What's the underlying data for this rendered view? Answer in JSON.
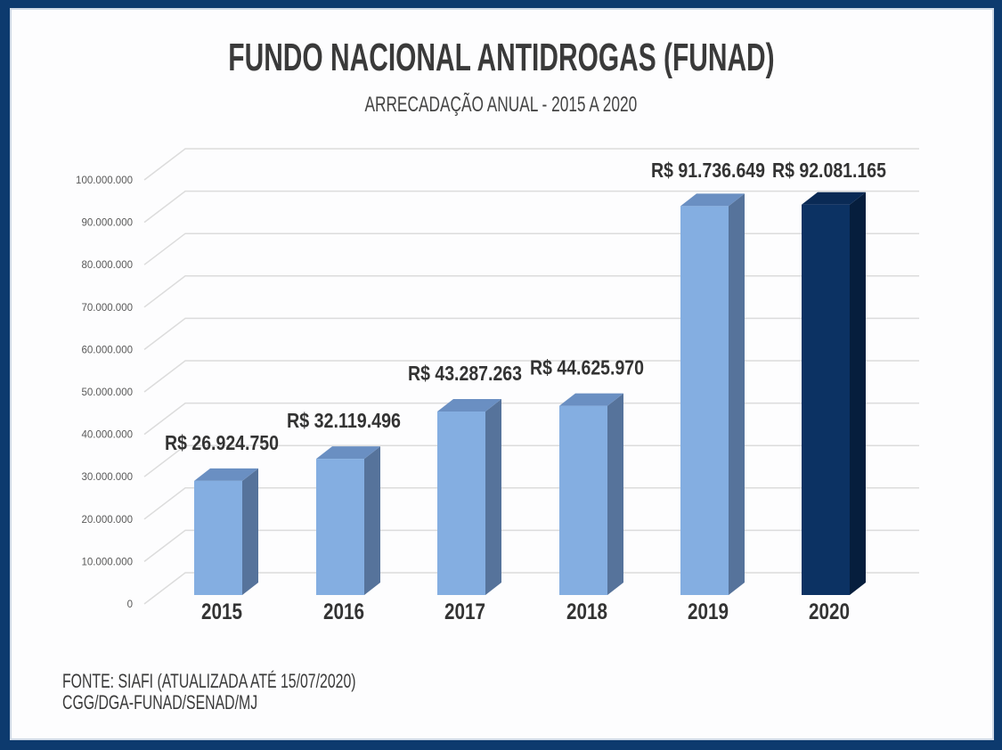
{
  "chart_data": {
    "type": "bar",
    "title": "FUNDO NACIONAL ANTIDROGAS (FUNAD)",
    "subtitle": "ARRECADAÇÃO ANUAL - 2015 A 2020",
    "categories": [
      "2015",
      "2016",
      "2017",
      "2018",
      "2019",
      "2020"
    ],
    "values": [
      26924750,
      32119496,
      43287263,
      44625970,
      91736649,
      92081165
    ],
    "data_labels": [
      "R$ 26.924.750",
      "R$ 32.119.496",
      "R$ 43.287.263",
      "R$ 44.625.970",
      "R$ 91.736.649",
      "R$ 92.081.165"
    ],
    "yticks": [
      "0",
      "10.000.000",
      "20.000.000",
      "30.000.000",
      "40.000.000",
      "50.000.000",
      "60.000.000",
      "70.000.000",
      "80.000.000",
      "90.000.000",
      "100.000.000"
    ],
    "ylim": [
      0,
      100000000
    ],
    "xlabel": "",
    "ylabel": "",
    "grid": true,
    "colors": {
      "default": "#84aee1",
      "default_side": "#56739b",
      "highlight": "#0c3263",
      "highlight_side": "#061e3d"
    },
    "highlight_index": 5
  },
  "source": {
    "line1": "FONTE: SIAFI (ATUALIZADA ATÉ 15/07/2020)",
    "line2": "CGG/DGA-FUNAD/SENAD/MJ"
  }
}
